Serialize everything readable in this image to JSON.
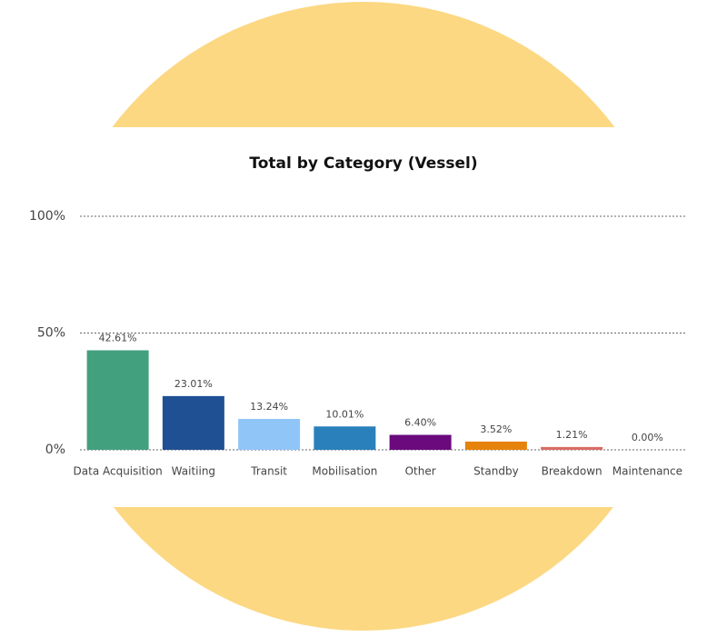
{
  "chart_data": {
    "type": "bar",
    "title": "Total by Category (Vessel)",
    "categories": [
      "Data Acquisition",
      "Waitiing",
      "Transit",
      "Mobilisation",
      "Other",
      "Standby",
      "Breakdown",
      "Maintenance"
    ],
    "values": [
      42.61,
      23.01,
      13.24,
      10.01,
      6.4,
      3.52,
      1.21,
      0.0
    ],
    "value_labels": [
      "42.61%",
      "23.01%",
      "13.24%",
      "10.01%",
      "6.40%",
      "3.52%",
      "1.21%",
      "0.00%"
    ],
    "colors": [
      "#43a07e",
      "#1f5094",
      "#90c5f8",
      "#2a80ba",
      "#6a0a7d",
      "#e6830a",
      "#d96b64",
      "#cccccc"
    ],
    "ylim": [
      0,
      100
    ],
    "yticks": [
      {
        "value": 0,
        "label": "0%"
      },
      {
        "value": 50,
        "label": "50%"
      },
      {
        "value": 100,
        "label": "100%"
      }
    ],
    "grid": true
  }
}
